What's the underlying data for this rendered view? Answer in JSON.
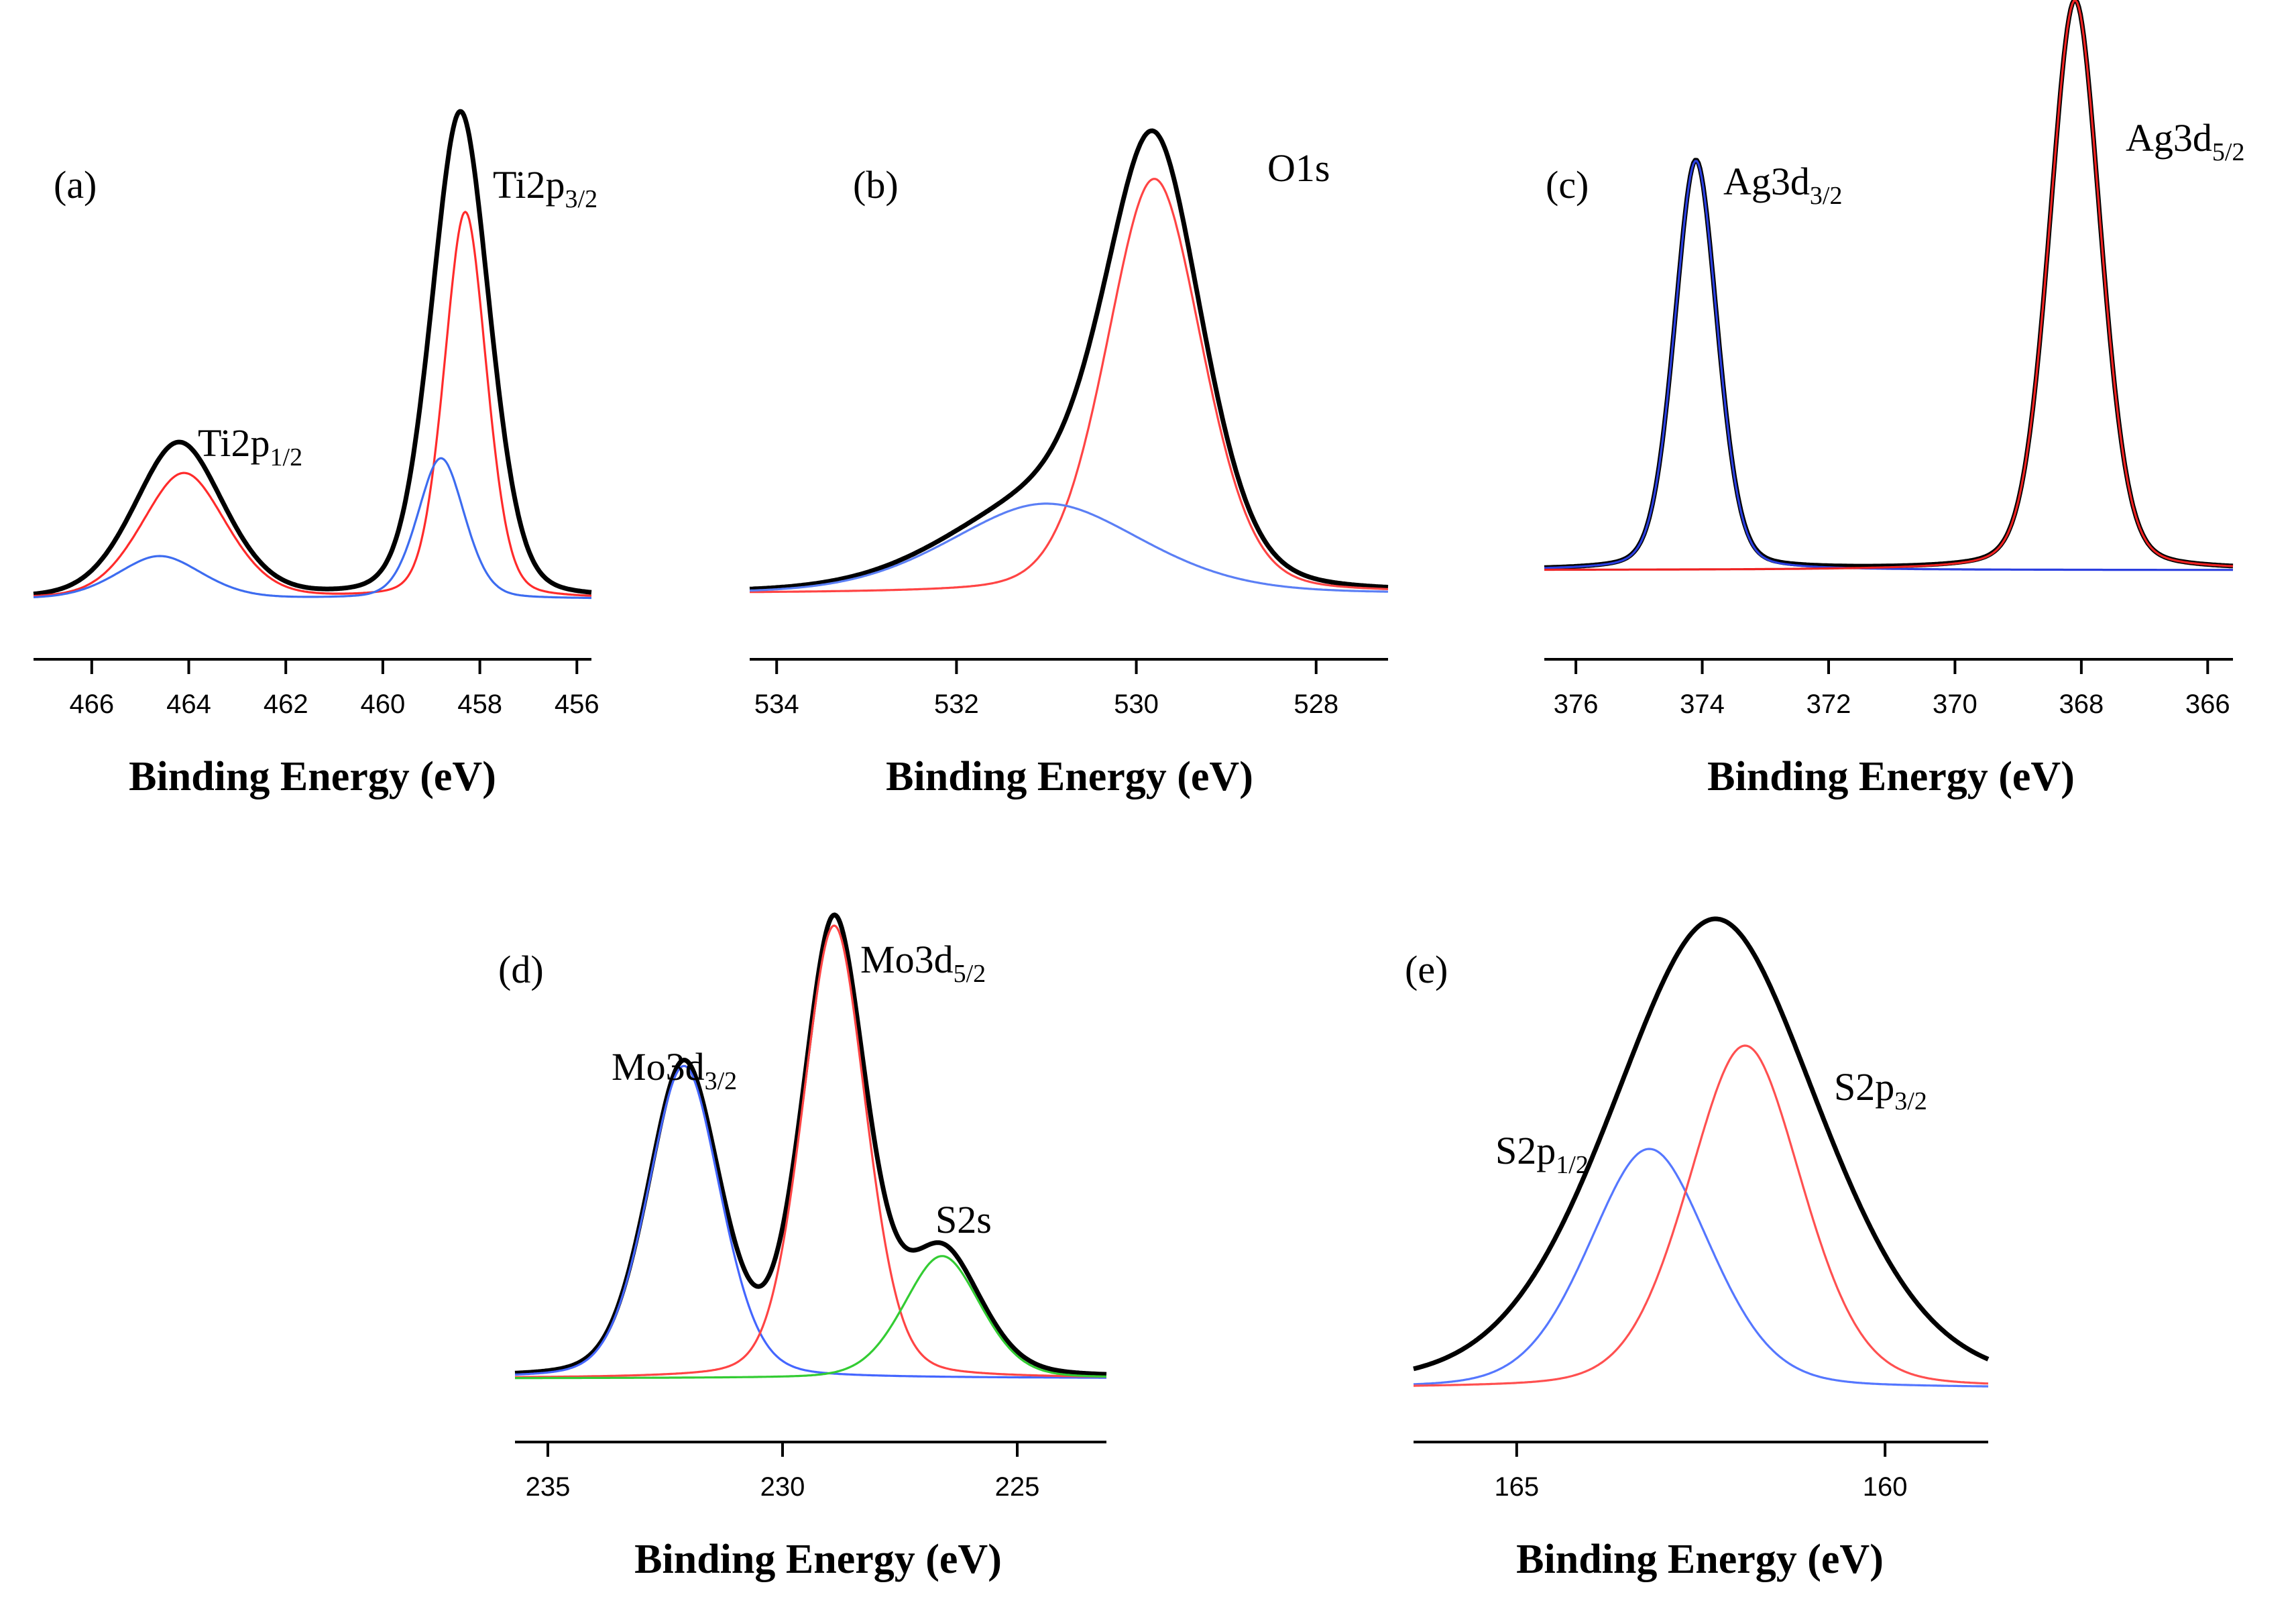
{
  "chart_data": [
    {
      "type": "line",
      "panel_label": "(a)",
      "xlabel": "Binding Energy (eV)",
      "xlim": [
        467.2,
        455.7
      ],
      "xticks": [
        "466",
        "464",
        "462",
        "460",
        "458",
        "456"
      ],
      "tick_values": [
        466,
        464,
        462,
        460,
        458,
        456
      ],
      "ylim": [
        0,
        1.0
      ],
      "annotations": [
        {
          "base": "Ti2p",
          "sub": "1/2",
          "x": 464.2
        },
        {
          "base": "Ti2p",
          "sub": "3/2",
          "x": 458.1
        }
      ],
      "series": [
        {
          "name": "envelope",
          "color": "#000000",
          "peaks": [
            {
              "c": 464.2,
              "a": 0.31,
              "w": 0.95
            },
            {
              "c": 458.4,
              "a": 0.97,
              "w": 0.62
            }
          ]
        },
        {
          "name": "component-red",
          "color": "#ff2b2b",
          "peaks": [
            {
              "c": 464.1,
              "a": 0.25,
              "w": 0.9
            },
            {
              "c": 458.3,
              "a": 0.77,
              "w": 0.45
            }
          ]
        },
        {
          "name": "component-blue",
          "color": "#3d6cf0",
          "peaks": [
            {
              "c": 464.6,
              "a": 0.085,
              "w": 0.9
            },
            {
              "c": 458.8,
              "a": 0.28,
              "w": 0.5
            }
          ]
        }
      ]
    },
    {
      "type": "line",
      "panel_label": "(b)",
      "xlabel": "Binding Energy (eV)",
      "xlim": [
        534.3,
        527.2
      ],
      "xticks": [
        "534",
        "532",
        "530",
        "528"
      ],
      "tick_values": [
        534,
        532,
        530,
        528
      ],
      "ylim": [
        0,
        1.0
      ],
      "annotations": [
        {
          "base": "O1s",
          "sub": "",
          "x": 528.5
        }
      ],
      "series": [
        {
          "name": "envelope",
          "color": "#000000",
          "peaks": [
            {
              "c": 529.8,
              "a": 0.83,
              "w": 0.55
            },
            {
              "c": 531.0,
              "a": 0.18,
              "w": 1.1
            }
          ]
        },
        {
          "name": "component-red",
          "color": "#ff4444",
          "peaks": [
            {
              "c": 529.8,
              "a": 0.83,
              "w": 0.55
            }
          ]
        },
        {
          "name": "component-blue",
          "color": "#5b7ff5",
          "peaks": [
            {
              "c": 531.0,
              "a": 0.18,
              "w": 1.1
            }
          ]
        }
      ]
    },
    {
      "type": "line",
      "panel_label": "(c)",
      "xlabel": "Binding Energy (eV)",
      "xlim": [
        376.5,
        365.6
      ],
      "xticks": [
        "376",
        "374",
        "372",
        "370",
        "368",
        "366"
      ],
      "tick_values": [
        376,
        374,
        372,
        370,
        368,
        366
      ],
      "ylim": [
        0,
        1.0
      ],
      "annotations": [
        {
          "base": "Ag3d",
          "sub": "3/2",
          "x": 372.5
        },
        {
          "base": "Ag3d",
          "sub": "5/2",
          "x": 366.5
        }
      ],
      "series": [
        {
          "name": "envelope",
          "color": "#000000",
          "peaks": [
            {
              "c": 374.1,
              "a": 0.74,
              "w": 0.35
            },
            {
              "c": 368.1,
              "a": 1.03,
              "w": 0.42
            }
          ]
        },
        {
          "name": "component-blue",
          "color": "#2b3fe0",
          "peaks": [
            {
              "c": 374.1,
              "a": 0.74,
              "w": 0.35
            }
          ]
        },
        {
          "name": "component-red",
          "color": "#ee2222",
          "peaks": [
            {
              "c": 368.1,
              "a": 1.03,
              "w": 0.42
            }
          ]
        }
      ]
    },
    {
      "type": "line",
      "panel_label": "(d)",
      "xlabel": "Binding Energy (eV)",
      "xlim": [
        235.7,
        223.1
      ],
      "xticks": [
        "235",
        "230",
        "225"
      ],
      "tick_values": [
        235,
        230,
        225
      ],
      "ylim": [
        0,
        1.0
      ],
      "annotations": [
        {
          "base": "Mo3d",
          "sub": "3/2",
          "x": 233.0
        },
        {
          "base": "Mo3d",
          "sub": "5/2",
          "x": 227.5
        },
        {
          "base": "S2s",
          "sub": "",
          "x": 225.8
        }
      ],
      "series": [
        {
          "name": "envelope",
          "color": "#000000",
          "peaks": [
            {
              "c": 232.1,
              "a": 0.69,
              "w": 0.8
            },
            {
              "c": 228.9,
              "a": 1.0,
              "w": 0.7
            },
            {
              "c": 226.6,
              "a": 0.27,
              "w": 0.85
            }
          ]
        },
        {
          "name": "component-blue",
          "color": "#4466ff",
          "peaks": [
            {
              "c": 232.1,
              "a": 0.69,
              "w": 0.8
            }
          ]
        },
        {
          "name": "component-red",
          "color": "#ff4444",
          "peaks": [
            {
              "c": 228.9,
              "a": 1.0,
              "w": 0.7
            }
          ]
        },
        {
          "name": "component-green",
          "color": "#33cc33",
          "peaks": [
            {
              "c": 226.6,
              "a": 0.27,
              "w": 0.85
            }
          ]
        }
      ]
    },
    {
      "type": "line",
      "panel_label": "(e)",
      "xlabel": "Binding Energy (eV)",
      "xlim": [
        166.4,
        158.6
      ],
      "xticks": [
        "165",
        "160"
      ],
      "tick_values": [
        165,
        160
      ],
      "ylim": [
        0,
        1.0
      ],
      "annotations": [
        {
          "base": "S2p",
          "sub": "1/2",
          "x": 164.4
        },
        {
          "base": "S2p",
          "sub": "3/2",
          "x": 160.4
        }
      ],
      "series": [
        {
          "name": "envelope",
          "color": "#000000",
          "peaks": [
            {
              "c": 162.3,
              "a": 1.0,
              "w": 1.45
            }
          ]
        },
        {
          "name": "component-blue",
          "color": "#5577ff",
          "peaks": [
            {
              "c": 163.2,
              "a": 0.51,
              "w": 0.85
            }
          ]
        },
        {
          "name": "component-red",
          "color": "#ff5050",
          "peaks": [
            {
              "c": 161.9,
              "a": 0.73,
              "w": 0.8
            }
          ]
        }
      ]
    }
  ]
}
